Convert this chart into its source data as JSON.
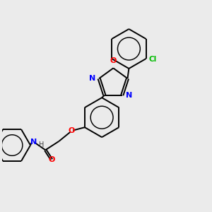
{
  "bg_color": "#ebebeb",
  "bond_color": "#000000",
  "N_color": "#0000ff",
  "O_color": "#ff0000",
  "Cl_color": "#00bb00",
  "lw": 1.4,
  "dbo": 0.055,
  "figsize": [
    3.0,
    3.0
  ],
  "dpi": 100,
  "xlim": [
    0,
    10
  ],
  "ylim": [
    0,
    10
  ]
}
